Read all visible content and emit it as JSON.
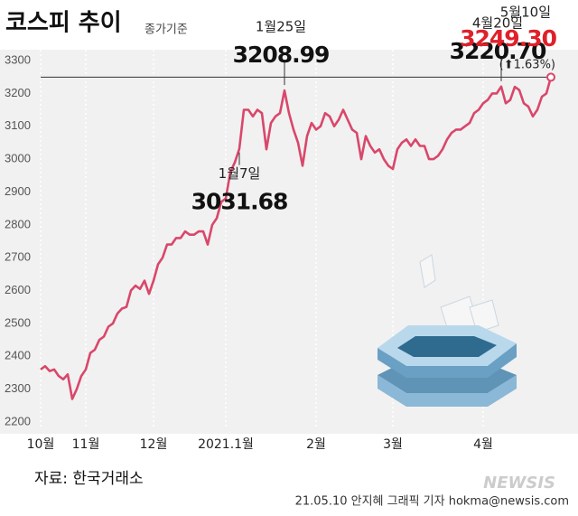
{
  "chart_data": {
    "type": "line",
    "title": "코스피 추이",
    "subtitle": "종가기준",
    "source": "자료: 한국거래소",
    "credit": "21.05.10 안지혜 그래픽 기자 hokma@newsis.com",
    "watermark": "NEWSIS",
    "change_label": "(⬆1.63%)",
    "color": "#d9476b",
    "ylim": [
      2200,
      3300
    ],
    "yticks": [
      2200,
      2300,
      2400,
      2500,
      2600,
      2700,
      2800,
      2900,
      3000,
      3100,
      3200,
      3300
    ],
    "categories": [
      "10월",
      null,
      null,
      null,
      null,
      null,
      null,
      null,
      null,
      null,
      "11월",
      null,
      null,
      null,
      null,
      null,
      null,
      null,
      null,
      null,
      null,
      null,
      null,
      null,
      null,
      "12월",
      null,
      null,
      null,
      null,
      null,
      null,
      null,
      null,
      null,
      null,
      null,
      null,
      null,
      null,
      null,
      "2021.1월",
      null,
      null,
      null,
      null,
      null,
      null,
      null,
      null,
      null,
      null,
      null,
      null,
      null,
      null,
      null,
      null,
      null,
      null,
      null,
      "2월",
      null,
      null,
      null,
      null,
      null,
      null,
      null,
      null,
      null,
      null,
      null,
      null,
      null,
      null,
      null,
      null,
      "3월",
      null,
      null,
      null,
      null,
      null,
      null,
      null,
      null,
      null,
      null,
      null,
      null,
      null,
      null,
      null,
      null,
      null,
      null,
      null,
      "4월",
      null,
      null,
      null,
      null,
      null,
      null,
      null,
      null,
      null,
      null,
      null,
      null,
      null,
      null,
      null
    ],
    "values": [
      2360,
      2370,
      2355,
      2360,
      2340,
      2330,
      2345,
      2270,
      2300,
      2340,
      2360,
      2410,
      2420,
      2450,
      2460,
      2490,
      2500,
      2530,
      2545,
      2550,
      2600,
      2615,
      2605,
      2630,
      2590,
      2630,
      2680,
      2700,
      2740,
      2740,
      2760,
      2760,
      2780,
      2770,
      2770,
      2780,
      2780,
      2740,
      2800,
      2820,
      2870,
      2880,
      2960,
      2990,
      3031.68,
      3150,
      3150,
      3130,
      3150,
      3140,
      3030,
      3110,
      3130,
      3140,
      3208.99,
      3140,
      3090,
      3050,
      2980,
      3070,
      3110,
      3090,
      3100,
      3140,
      3130,
      3100,
      3120,
      3150,
      3120,
      3090,
      3080,
      3000,
      3070,
      3040,
      3020,
      3030,
      3000,
      2980,
      2970,
      3030,
      3050,
      3060,
      3040,
      3060,
      3040,
      3040,
      3000,
      3000,
      3010,
      3030,
      3060,
      3080,
      3090,
      3090,
      3100,
      3110,
      3140,
      3150,
      3170,
      3180,
      3200,
      3200,
      3220.7,
      3170,
      3180,
      3220,
      3210,
      3170,
      3160,
      3130,
      3150,
      3190,
      3200,
      3249.3
    ],
    "value_labels": [
      null,
      null,
      null,
      null,
      null,
      null,
      null,
      null,
      null,
      null,
      null,
      null,
      null,
      null,
      null,
      null,
      null,
      null,
      null,
      null,
      null,
      null,
      null,
      null,
      null,
      null,
      null,
      null,
      null,
      null,
      null,
      null,
      null,
      null,
      null,
      null,
      null,
      null,
      null,
      null,
      null,
      null,
      null,
      null,
      "3031.68",
      null,
      null,
      null,
      null,
      null,
      null,
      null,
      null,
      null,
      "3208.99",
      null,
      null,
      null,
      null,
      null,
      null,
      null,
      null,
      null,
      null,
      null,
      null,
      null,
      null,
      null,
      null,
      null,
      null,
      null,
      null,
      null,
      null,
      null,
      null,
      null,
      null,
      null,
      null,
      null,
      null,
      null,
      null,
      null,
      null,
      null,
      null,
      null,
      null,
      null,
      null,
      null,
      null,
      null,
      null,
      null,
      null,
      null,
      "3220.70",
      null,
      null,
      null,
      null,
      null,
      null,
      null,
      null,
      null,
      null,
      "3249.30"
    ],
    "point_labels": [
      null,
      null,
      null,
      null,
      null,
      null,
      null,
      null,
      null,
      null,
      null,
      null,
      null,
      null,
      null,
      null,
      null,
      null,
      null,
      null,
      null,
      null,
      null,
      null,
      null,
      null,
      null,
      null,
      null,
      null,
      null,
      null,
      null,
      null,
      null,
      null,
      null,
      null,
      null,
      null,
      null,
      null,
      null,
      null,
      "1월7일",
      null,
      null,
      null,
      null,
      null,
      null,
      null,
      null,
      null,
      "1월25일",
      null,
      null,
      null,
      null,
      null,
      null,
      null,
      null,
      null,
      null,
      null,
      null,
      null,
      null,
      null,
      null,
      null,
      null,
      null,
      null,
      null,
      null,
      null,
      null,
      null,
      null,
      null,
      null,
      null,
      null,
      null,
      null,
      null,
      null,
      null,
      null,
      null,
      null,
      null,
      null,
      null,
      null,
      null,
      null,
      null,
      null,
      null,
      "4월20일",
      null,
      null,
      null,
      null,
      null,
      null,
      null,
      null,
      null,
      null,
      "5월10일"
    ]
  }
}
